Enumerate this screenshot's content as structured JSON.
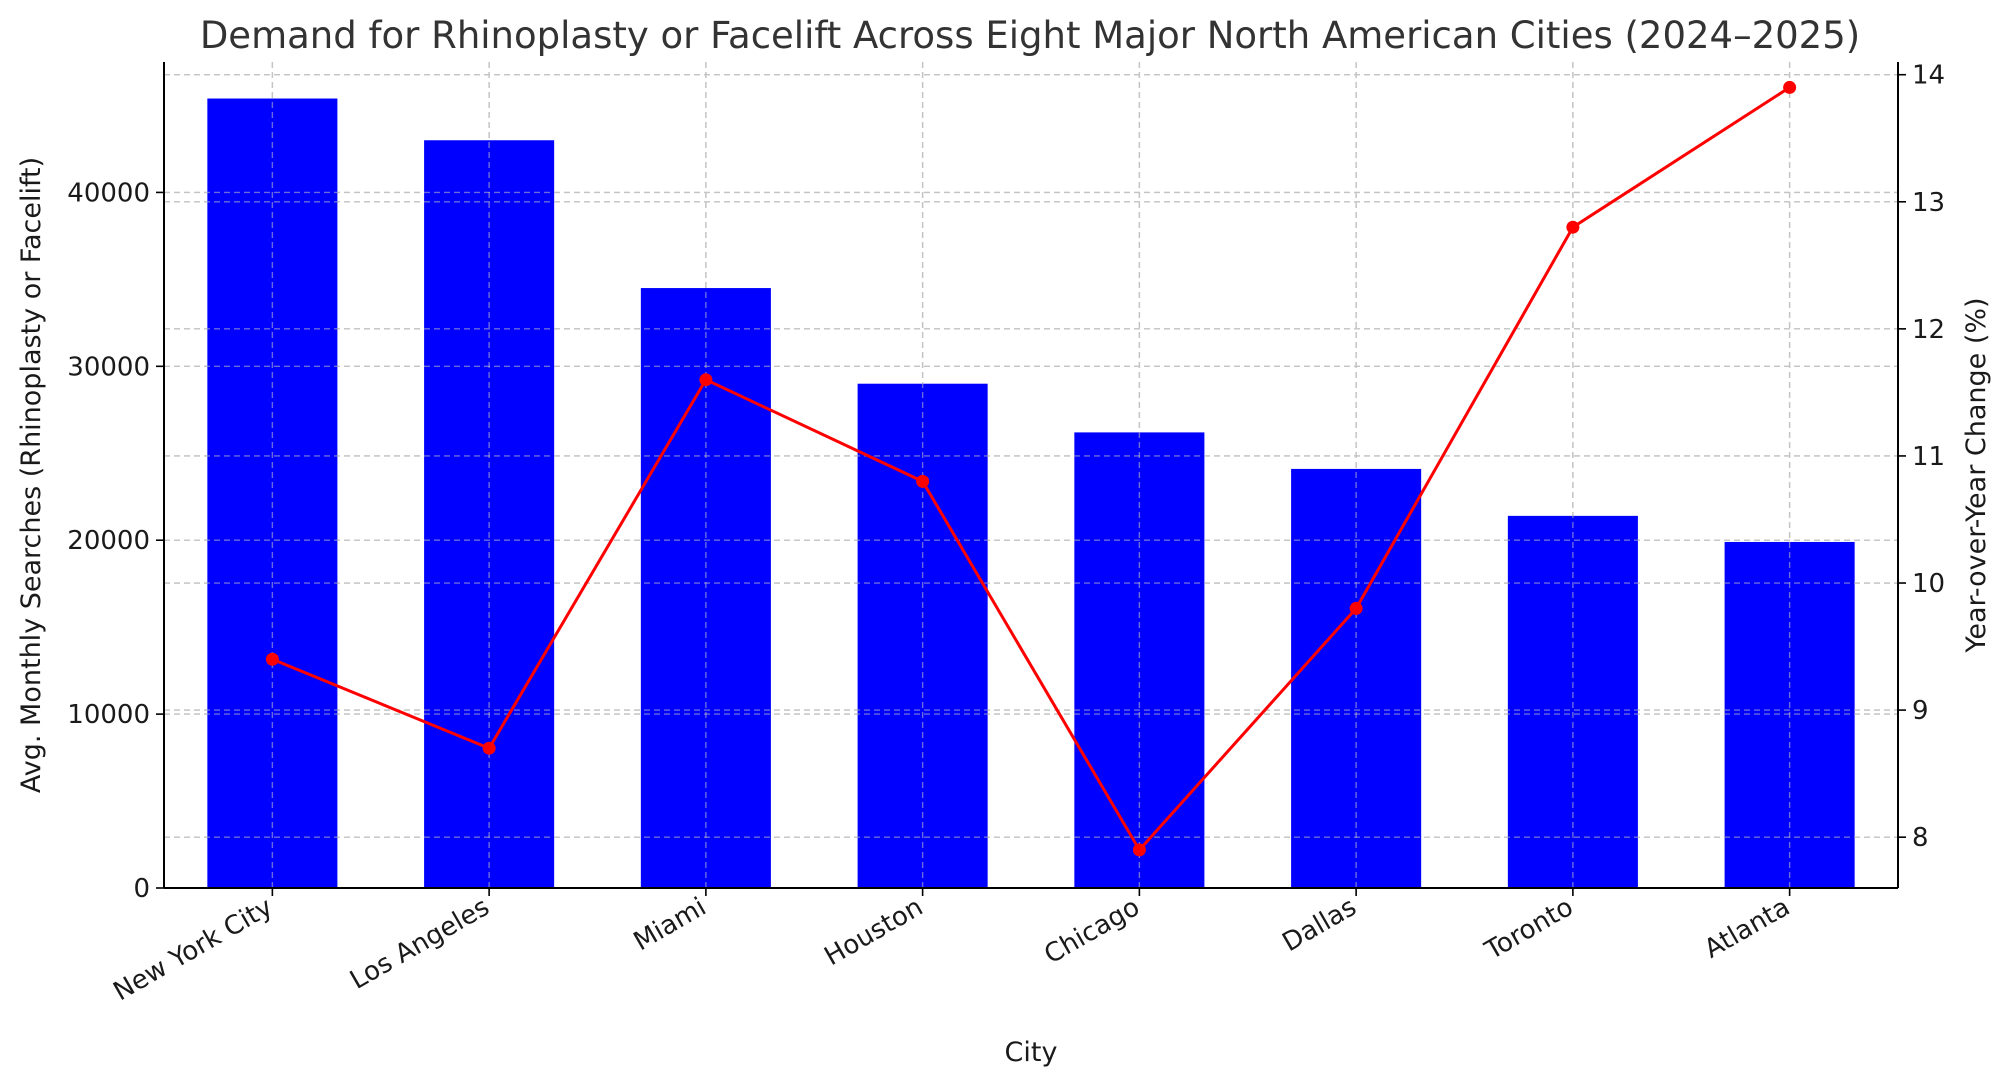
{
  "chart_data": {
    "type": "bar",
    "title": "Demand for Rhinoplasty or Facelift Across Eight Major North American Cities (2024–2025)",
    "xlabel": "City",
    "ylabel": "Avg. Monthly Searches (Rhinoplasty or Facelift)",
    "y2label": "Year-over-Year Change (%)",
    "categories": [
      "New York City",
      "Los Angeles",
      "Miami",
      "Houston",
      "Chicago",
      "Dallas",
      "Toronto",
      "Atlanta"
    ],
    "series": [
      {
        "type": "bar",
        "axis": "left",
        "color": "#0000ff",
        "values": [
          45400,
          43000,
          34500,
          29000,
          26200,
          24100,
          21400,
          19900
        ]
      },
      {
        "type": "line",
        "axis": "right",
        "color": "#ff0000",
        "marker": "circle",
        "values": [
          9.4,
          8.7,
          11.6,
          10.8,
          7.9,
          9.8,
          12.8,
          13.9
        ]
      }
    ],
    "ylim": [
      0,
      47500
    ],
    "yticks": [
      0,
      10000,
      20000,
      30000,
      40000
    ],
    "y2lim": [
      7.6,
      14.1
    ],
    "y2ticks": [
      8,
      9,
      10,
      11,
      12,
      13,
      14
    ],
    "grid": true,
    "legend": "none"
  }
}
